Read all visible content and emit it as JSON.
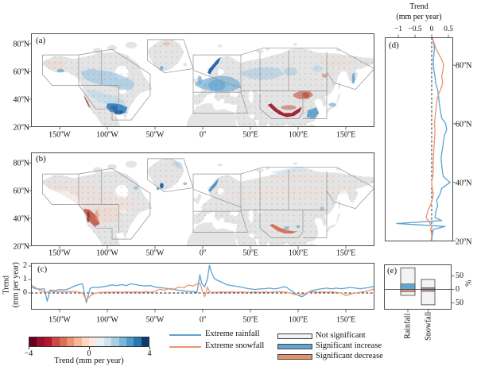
{
  "panels": {
    "a": "(a)",
    "b": "(b)",
    "c": "(c)",
    "d": "(d)",
    "e": "(e)"
  },
  "axes": {
    "lon_ticks": {
      "values": [
        -150,
        -100,
        -50,
        0,
        50,
        100,
        150
      ],
      "labels": [
        "150°W",
        "100°W",
        "50°W",
        "0°",
        "50°E",
        "100°E",
        "150°E"
      ]
    },
    "lat_ticks": {
      "values": [
        80,
        60,
        40,
        20
      ],
      "labels": [
        "80°N",
        "60°N",
        "40°N",
        "20°N"
      ]
    }
  },
  "panel_c": {
    "ylabel_line1": "Trend",
    "ylabel_line2": "(mm per year)",
    "y_ticks": {
      "values": [
        0,
        1,
        2
      ],
      "labels": [
        "0",
        "1",
        "2"
      ]
    }
  },
  "panel_d": {
    "title_line1": "Trend",
    "title_line2": "(mm per year)",
    "x_ticks": {
      "values": [
        -1,
        -0.5,
        0,
        0.5
      ],
      "labels": [
        "−1",
        "−0.5",
        "0",
        "0.5"
      ]
    }
  },
  "panel_e": {
    "unit": "%",
    "y_ticks": {
      "values": [
        50,
        0,
        -50
      ],
      "labels": [
        "50",
        "0",
        "50"
      ]
    },
    "categories": [
      "Rainfall",
      "Snowfall"
    ]
  },
  "colorbar": {
    "label": "Trend (mm per year)",
    "ticks": {
      "values": [
        -4,
        0,
        4
      ],
      "labels": [
        "−4",
        "0",
        "4"
      ]
    },
    "colors": [
      "#67001f",
      "#980c2d",
      "#b2182b",
      "#cc4a42",
      "#dc6e57",
      "#ec9374",
      "#f7b698",
      "#fcd7c2",
      "#f9e8df",
      "#e9f0f4",
      "#cde3ef",
      "#a6cfe3",
      "#7ab6d6",
      "#4f9bc7",
      "#2a77b2",
      "#0b3d70"
    ]
  },
  "legend_lines": [
    {
      "label": "Extreme rainfall",
      "color": "#5ba3d2"
    },
    {
      "label": "Extreme snowfall",
      "color": "#ee9372"
    }
  ],
  "legend_patches": [
    {
      "label": "Not significant",
      "color": "#f3f3f3"
    },
    {
      "label": "Significant increase",
      "color": "#63a5d2"
    },
    {
      "label": "Significant decrease",
      "color": "#e88f6c"
    }
  ],
  "colors": {
    "land": "#e4e4e4",
    "ocean": "#ffffff",
    "region_outline": "#8f8f8f",
    "axis": "#4d4d4d",
    "rainfall_line": "#5ba3d2",
    "snowfall_line": "#ee9372",
    "dashed_zero": "#1a1a1a"
  },
  "chart_data": [
    {
      "id": "c",
      "type": "line",
      "title": "Zonal mean trend of extreme precipitation vs longitude",
      "ylabel": "Trend (mm per year)",
      "xlim": [
        -180,
        180
      ],
      "ylim": [
        -1.24,
        2.24
      ],
      "x": [
        -180,
        -175,
        -170,
        -166,
        -163,
        -160,
        -155,
        -150,
        -145,
        -140,
        -135,
        -130,
        -126,
        -122,
        -118,
        -114,
        -110,
        -105,
        -100,
        -95,
        -90,
        -85,
        -80,
        -75,
        -70,
        -65,
        -60,
        -55,
        -50,
        -45,
        -40,
        -35,
        -30,
        -25,
        -20,
        -15,
        -10,
        -6,
        -3,
        -1,
        2,
        5,
        7,
        9,
        12,
        15,
        20,
        25,
        30,
        35,
        40,
        45,
        50,
        55,
        60,
        65,
        70,
        75,
        80,
        85,
        88,
        92,
        96,
        100,
        104,
        108,
        112,
        116,
        120,
        125,
        130,
        135,
        140,
        145,
        150,
        155,
        160,
        165,
        170,
        175,
        180
      ],
      "series": [
        {
          "name": "Extreme rainfall",
          "color": "#5ba3d2",
          "values": [
            0.45,
            0.32,
            0.28,
            0.3,
            -0.62,
            0.22,
            0.18,
            0.26,
            0.22,
            0.32,
            0.5,
            0.62,
            0.68,
            -0.72,
            0.35,
            0.42,
            0.4,
            0.46,
            0.52,
            0.6,
            0.55,
            0.62,
            0.55,
            0.68,
            0.62,
            0.55,
            0.52,
            0.56,
            0.44,
            0.4,
            0.36,
            0.3,
            0.26,
            0.2,
            0.16,
            0.12,
            0.1,
            0.05,
            1.35,
            0.7,
            0.45,
            1.05,
            2.05,
            1.55,
            1.1,
            0.95,
            0.8,
            0.62,
            0.55,
            0.5,
            0.44,
            0.36,
            0.3,
            0.26,
            0.3,
            0.32,
            0.36,
            0.3,
            0.36,
            0.46,
            0.42,
            0.2,
            0.02,
            -0.18,
            -0.28,
            -0.12,
            0.12,
            0.2,
            0.26,
            0.32,
            0.36,
            0.3,
            0.36,
            0.32,
            0.36,
            0.42,
            0.36,
            0.32,
            0.36,
            0.42,
            0.5
          ]
        },
        {
          "name": "Extreme snowfall",
          "color": "#ee9372",
          "values": [
            0.6,
            0.38,
            0.15,
            0.1,
            0.05,
            0.12,
            0.08,
            0.12,
            0.08,
            0.1,
            0.12,
            0.06,
            0.0,
            -0.5,
            -0.22,
            -0.05,
            0.02,
            0.05,
            0.06,
            0.05,
            0.08,
            0.05,
            0.08,
            0.06,
            0.09,
            0.05,
            0.1,
            0.06,
            0.12,
            0.28,
            0.2,
            0.34,
            0.28,
            0.44,
            0.38,
            0.58,
            0.52,
            0.68,
            0.74,
            0.3,
            -0.28,
            0.45,
            0.1,
            0.04,
            0.06,
            0.05,
            0.08,
            0.05,
            0.09,
            0.05,
            0.08,
            0.05,
            0.06,
            0.08,
            0.05,
            0.08,
            0.05,
            0.08,
            0.1,
            0.07,
            0.04,
            0.0,
            -0.1,
            -0.16,
            -0.1,
            -0.04,
            0.08,
            0.1,
            0.05,
            0.08,
            0.05,
            0.08,
            0.05,
            0.0,
            -0.2,
            -0.08,
            0.0,
            0.05,
            0.1,
            0.2,
            0.3
          ]
        }
      ],
      "zero_line": "dashed"
    },
    {
      "id": "d",
      "type": "line",
      "title": "Meridional mean trend of extreme precipitation vs latitude",
      "xlabel": "Trend (mm per year)",
      "xlim": [
        -1.4,
        0.63
      ],
      "ylim": [
        19.9,
        89.5
      ],
      "lat": [
        20,
        22,
        24,
        25,
        26,
        27,
        28,
        30,
        32,
        34,
        36,
        38,
        40,
        42,
        44,
        46,
        48,
        50,
        52,
        54,
        56,
        58,
        60,
        62,
        64,
        66,
        68,
        70,
        72,
        74,
        76,
        78,
        80,
        82,
        84,
        86,
        88,
        89.5
      ],
      "series": [
        {
          "name": "Extreme rainfall",
          "color": "#5ba3d2",
          "values": [
            0.0,
            0.02,
            0.05,
            0.4,
            -1.05,
            0.3,
            0.1,
            0.12,
            0.18,
            0.15,
            0.25,
            0.3,
            0.55,
            0.35,
            0.32,
            0.3,
            0.28,
            0.3,
            0.33,
            0.35,
            0.38,
            0.45,
            0.42,
            0.3,
            0.27,
            0.24,
            0.22,
            0.2,
            0.17,
            0.12,
            0.1,
            0.07,
            0.05,
            0.05,
            0.07,
            0.08,
            0.05,
            0.02
          ]
        },
        {
          "name": "Extreme snowfall",
          "color": "#ee9372",
          "values": [
            -0.02,
            0.0,
            -0.03,
            0.0,
            -0.05,
            -0.1,
            -0.17,
            -0.12,
            -0.05,
            0.02,
            0.05,
            0.02,
            0.0,
            0.03,
            0.05,
            0.04,
            0.05,
            0.06,
            0.07,
            0.08,
            0.09,
            0.1,
            0.08,
            0.1,
            0.12,
            0.14,
            0.16,
            0.2,
            0.28,
            0.33,
            0.3,
            0.33,
            0.36,
            0.3,
            0.2,
            0.12,
            0.06,
            0.02
          ]
        }
      ],
      "zero_line": "dashed"
    },
    {
      "id": "e",
      "type": "bar",
      "categories": [
        "Rainfall",
        "Snowfall"
      ],
      "ylabel": "%",
      "ylim": [
        -75,
        93
      ],
      "bars": {
        "Rainfall": {
          "increase_total": 80,
          "increase_significant": 20,
          "decrease_total": 22,
          "decrease_significant": 8
        },
        "Snowfall": {
          "increase_total": 37,
          "increase_significant": 6,
          "decrease_total": 57,
          "decrease_significant": 7
        }
      }
    }
  ]
}
